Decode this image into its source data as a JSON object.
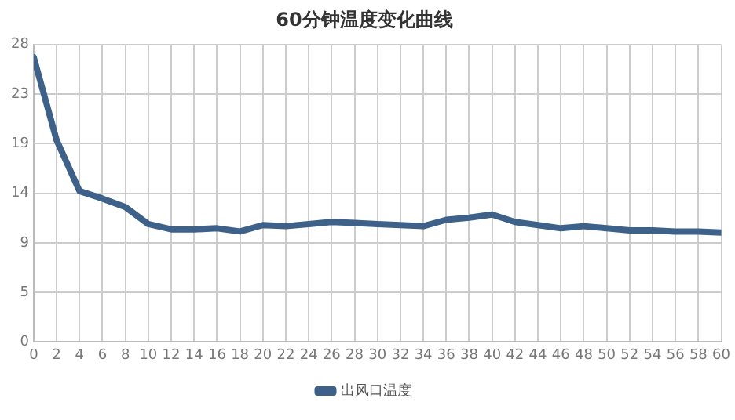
{
  "chart_data": {
    "type": "line",
    "title": "60分钟温度变化曲线",
    "x": [
      0,
      2,
      4,
      6,
      8,
      10,
      12,
      14,
      16,
      18,
      20,
      22,
      24,
      26,
      28,
      30,
      32,
      34,
      36,
      38,
      40,
      42,
      44,
      46,
      48,
      50,
      52,
      54,
      56,
      58,
      60
    ],
    "series": [
      {
        "name": "出风口温度",
        "color": "#3d6189",
        "values": [
          26.8,
          19.0,
          14.2,
          13.5,
          12.7,
          11.1,
          10.6,
          10.6,
          10.7,
          10.4,
          11.0,
          10.9,
          11.1,
          11.3,
          11.2,
          11.1,
          11.0,
          10.9,
          11.5,
          11.7,
          12.0,
          11.3,
          11.0,
          10.7,
          10.9,
          10.7,
          10.5,
          10.5,
          10.4,
          10.4,
          10.3
        ]
      }
    ],
    "xlim": [
      0,
      60
    ],
    "xticks": [
      0,
      2,
      4,
      6,
      8,
      10,
      12,
      14,
      16,
      18,
      20,
      22,
      24,
      26,
      28,
      30,
      32,
      34,
      36,
      38,
      40,
      42,
      44,
      46,
      48,
      50,
      52,
      54,
      56,
      58,
      60
    ],
    "ylim": [
      0,
      28
    ],
    "yticks": [
      0,
      {
        "value": 4.667,
        "label": "5"
      },
      {
        "value": 9.333,
        "label": "9"
      },
      14,
      {
        "value": 18.667,
        "label": "19"
      },
      {
        "value": 23.333,
        "label": "23"
      },
      28
    ],
    "grid": true,
    "legend": "bottom",
    "marker": "none",
    "line_style": "solid"
  }
}
